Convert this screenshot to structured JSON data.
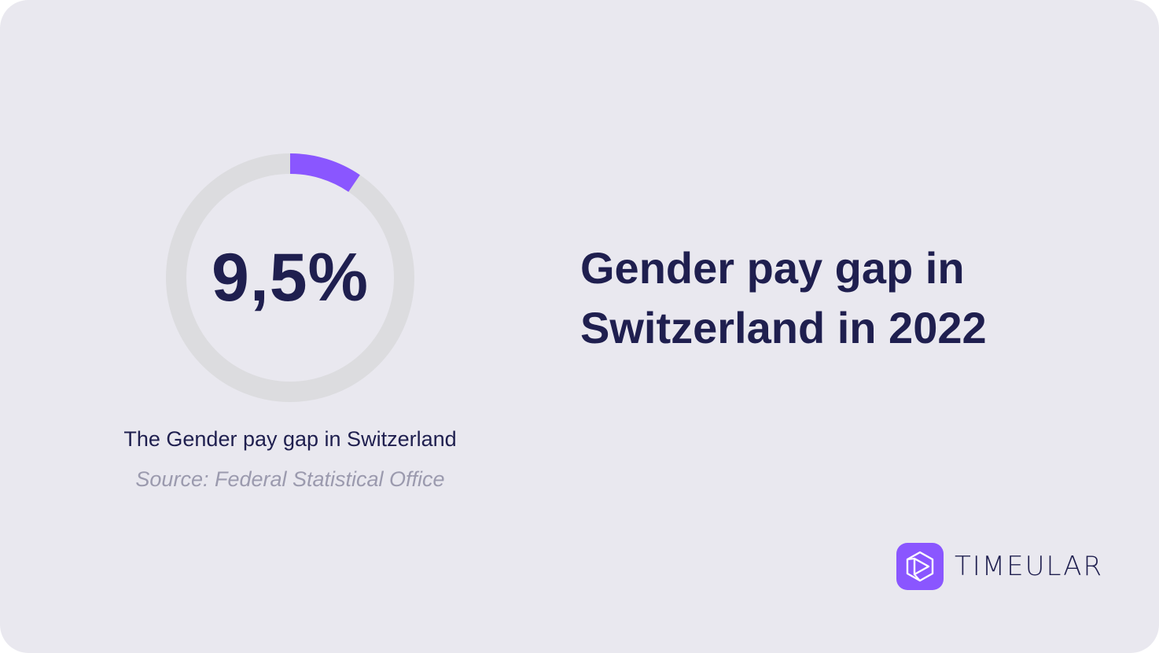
{
  "chart_data": {
    "type": "pie",
    "variant": "donut",
    "value_label": "9,5%",
    "values": [
      9.5,
      90.5
    ],
    "colors": {
      "highlight": "#8a56ff",
      "remainder": "#dcdcdf"
    },
    "caption": "The Gender pay gap in Switzerland",
    "source": "Source: Federal Statistical Office"
  },
  "headline": {
    "line1": "Gender pay gap in",
    "line2": "Switzerland in 2022"
  },
  "brand": {
    "name": "TIMEULAR",
    "icon": "play-hexagon-icon",
    "color": "#8a56ff"
  }
}
